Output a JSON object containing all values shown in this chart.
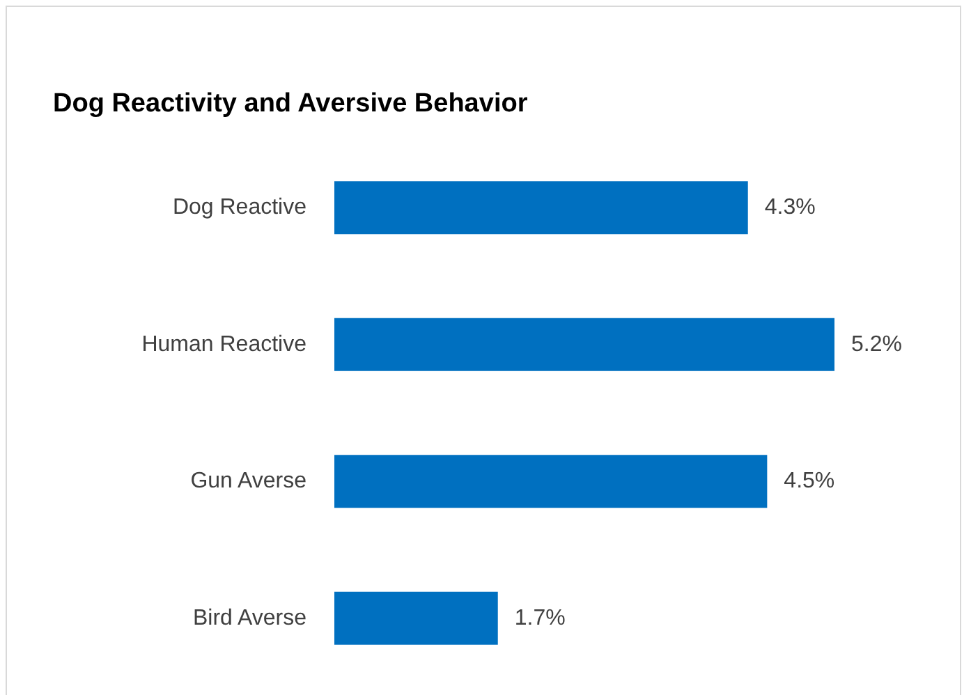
{
  "chart_data": {
    "type": "bar",
    "orientation": "horizontal",
    "title": "Dog Reactivity and Aversive Behavior",
    "categories": [
      "Dog Reactive",
      "Human Reactive",
      "Gun Averse",
      "Bird Averse"
    ],
    "values": [
      4.3,
      5.2,
      4.5,
      1.7
    ],
    "value_labels": [
      "4.3%",
      "5.2%",
      "4.5%",
      "1.7%"
    ],
    "color": "#0070c0"
  }
}
